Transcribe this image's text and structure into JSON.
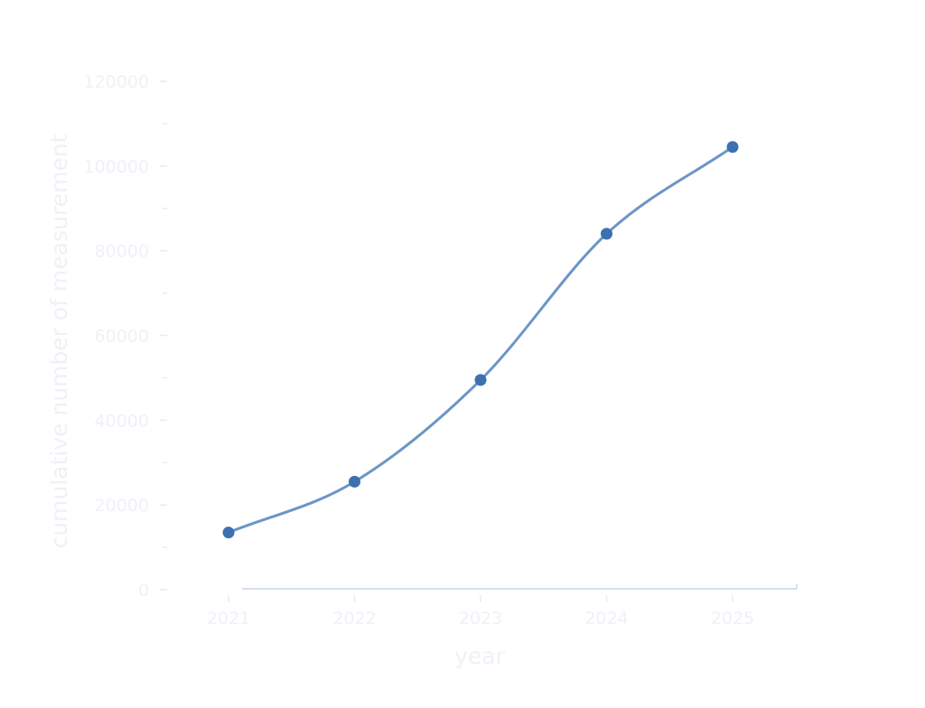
{
  "colors": {
    "series": "#3d70b0",
    "series_line": "#6b96c6",
    "label_text": "#eef1f7",
    "axis": "#c9d6ea"
  },
  "chart_data": {
    "type": "line",
    "title": "",
    "xlabel": "year",
    "ylabel": "cumulative number of measurement",
    "x": [
      "2021",
      "2022",
      "2023",
      "2024",
      "2025"
    ],
    "y": [
      13500,
      25500,
      49500,
      84000,
      104500
    ],
    "ylim": [
      0,
      120000
    ],
    "yticks": [
      0,
      20000,
      40000,
      60000,
      80000,
      100000,
      120000
    ],
    "ytick_labels": [
      "0",
      "20000",
      "40000",
      "60000",
      "80000",
      "100000",
      "120000"
    ],
    "grid": false,
    "legend": "none",
    "smooth": true,
    "markers": true
  }
}
